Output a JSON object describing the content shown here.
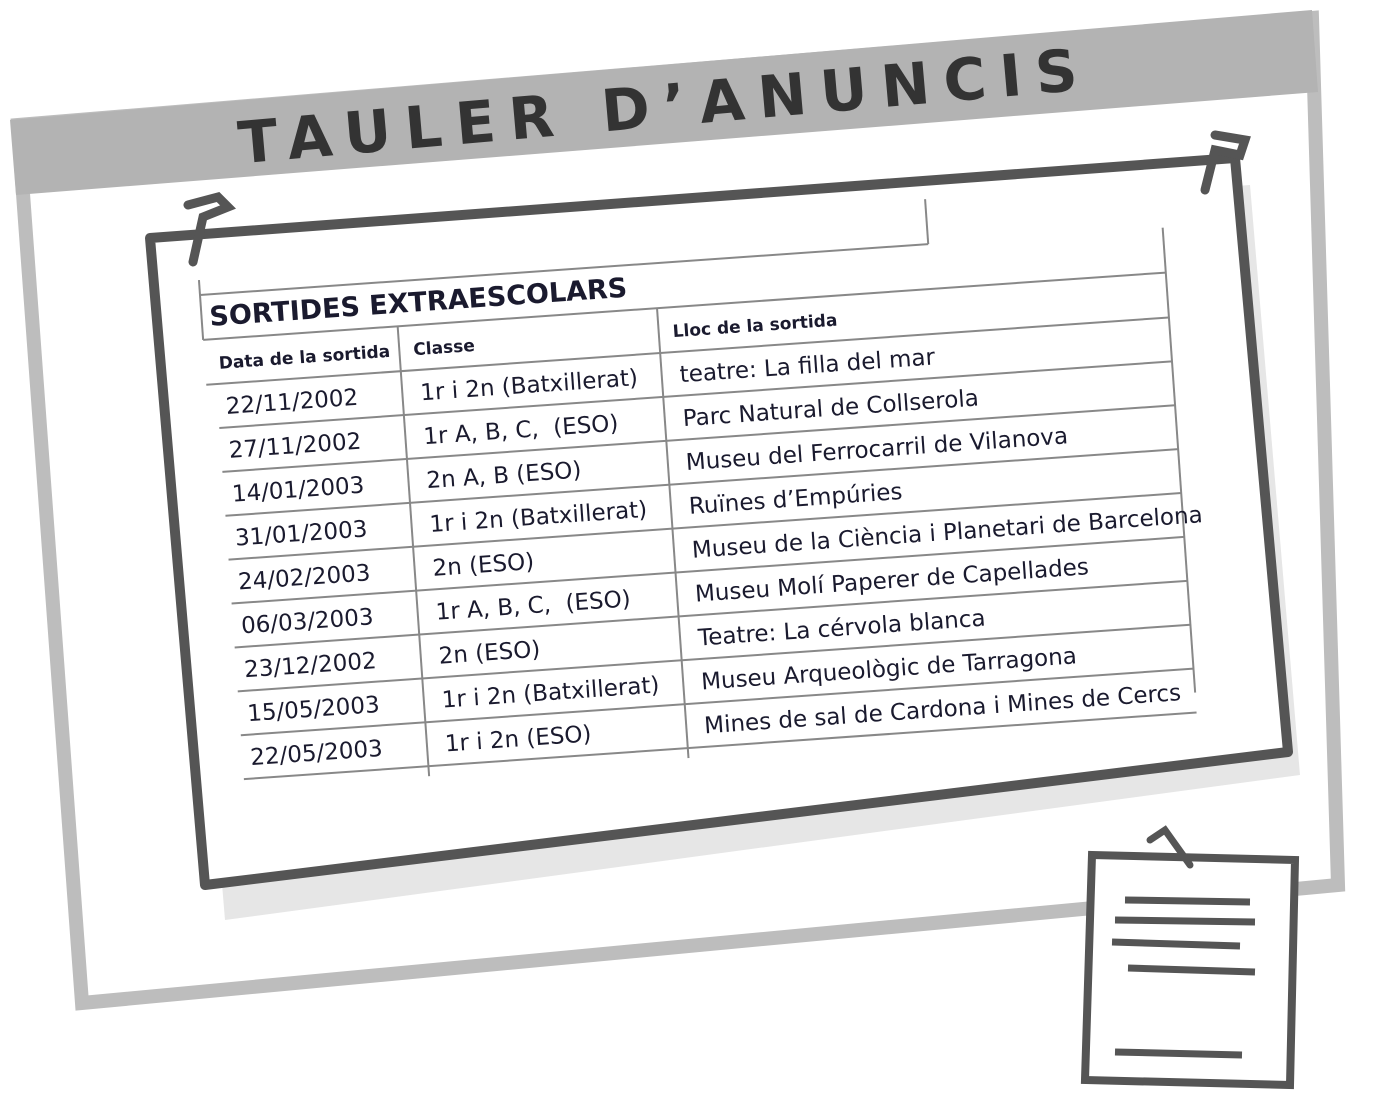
{
  "header": {
    "title": "TAULER D’ANUNCIS"
  },
  "table": {
    "title": "SORTIDES EXTRAESCOLARS",
    "columns": [
      "Data de la sortida",
      "Classe",
      "Lloc de la sortida"
    ],
    "rows": [
      [
        "22/11/2002",
        "1r i 2n (Batxillerat)",
        "teatre: La filla del mar"
      ],
      [
        "27/11/2002",
        "1r A, B, C,  (ESO)",
        "Parc Natural de Collserola"
      ],
      [
        "14/01/2003",
        "2n A, B (ESO)",
        "Museu del Ferrocarril de Vilanova"
      ],
      [
        "31/01/2003",
        "1r i 2n (Batxillerat)",
        "Ruïnes d’Empúries"
      ],
      [
        "24/02/2003",
        "2n (ESO)",
        "Museu de la Ciència i Planetari de Barcelona"
      ],
      [
        "06/03/2003",
        "1r A, B, C,  (ESO)",
        "Museu Molí Paperer de Capellades"
      ],
      [
        "23/12/2002",
        "2n (ESO)",
        "Teatre: La cérvola blanca"
      ],
      [
        "15/05/2003",
        "1r i 2n (Batxillerat)",
        "Museu Arqueològic de Tarragona"
      ],
      [
        "22/05/2003",
        "1r i 2n (ESO)",
        "Mines de sal de Cardona i Mines de Cercs"
      ]
    ]
  }
}
